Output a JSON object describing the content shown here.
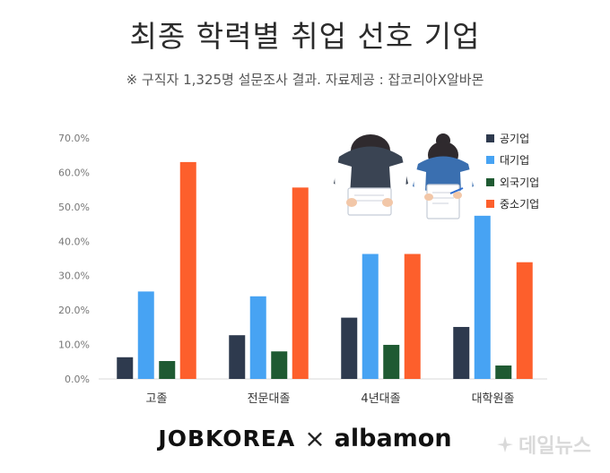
{
  "header": {
    "title": "최종 학력별 취업 선호 기업",
    "subtitle": "※ 구직자  1,325명 설문조사 결과. 자료제공 : 잡코리아X알바몬"
  },
  "chart_data": {
    "type": "bar",
    "categories": [
      "고졸",
      "전문대졸",
      "4년대졸",
      "대학원졸"
    ],
    "series": [
      {
        "name": "공기업",
        "color": "#2e3a4e",
        "values": [
          6.3,
          12.7,
          17.8,
          15.1
        ]
      },
      {
        "name": "대기업",
        "color": "#47a3f3",
        "values": [
          25.4,
          24.0,
          36.3,
          47.4
        ]
      },
      {
        "name": "외국기업",
        "color": "#1f5a32",
        "values": [
          5.2,
          8.0,
          9.9,
          3.9
        ]
      },
      {
        "name": "중소기업",
        "color": "#fd5f2c",
        "values": [
          63.0,
          55.6,
          36.3,
          33.9
        ]
      }
    ],
    "ylim": [
      0,
      70
    ],
    "yticks": [
      "0.0%",
      "10.0%",
      "20.0%",
      "30.0%",
      "40.0%",
      "50.0%",
      "60.0%",
      "70.0%"
    ],
    "title": "",
    "xlabel": "",
    "ylabel": "",
    "legend_position": "top-right",
    "grid": false
  },
  "footer": {
    "logo_left": "JOBKOREA",
    "logo_separator": "×",
    "logo_right": "albamon",
    "watermark": "데일뉴스"
  }
}
